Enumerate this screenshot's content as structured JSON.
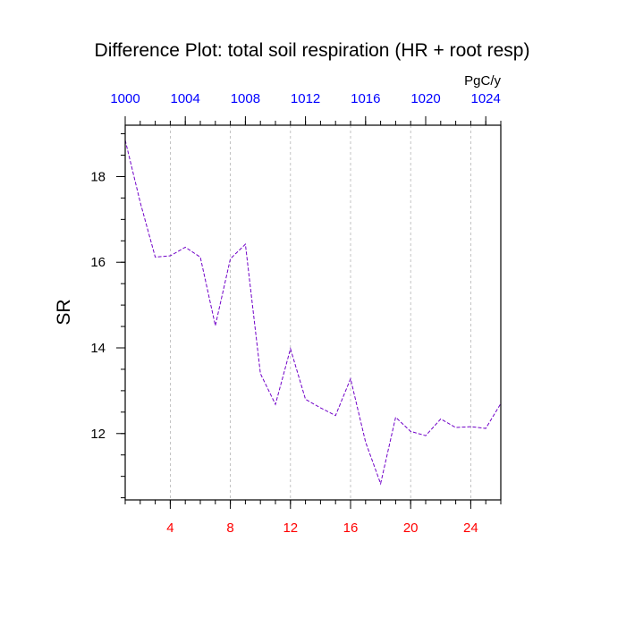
{
  "chart_data": {
    "type": "line",
    "title": "Difference Plot: total soil respiration (HR + root resp)",
    "units_label": "PgC/y",
    "ylabel": "SR",
    "xlabel": "",
    "xlim": [
      1,
      26
    ],
    "ylim": [
      10.45,
      19.2
    ],
    "grid": "vertical-dashed-at-major-x-ticks",
    "x_ticks_bottom": [
      4,
      8,
      12,
      16,
      20,
      24
    ],
    "x_ticks_top": [
      1000,
      1004,
      1008,
      1012,
      1016,
      1020,
      1024
    ],
    "y_ticks": [
      12,
      14,
      16,
      18
    ],
    "x": [
      1,
      2,
      3,
      4,
      5,
      6,
      7,
      8,
      9,
      10,
      11,
      12,
      13,
      14,
      15,
      16,
      17,
      18,
      19,
      20,
      21,
      22,
      23,
      24,
      25,
      26
    ],
    "series": [
      {
        "values": [
          18.85,
          17.4,
          16.12,
          16.15,
          16.35,
          16.12,
          14.52,
          16.08,
          16.42,
          13.4,
          12.68,
          13.98,
          12.8,
          12.6,
          12.42,
          13.28,
          11.8,
          10.83,
          12.38,
          12.05,
          11.95,
          12.34,
          12.14,
          12.16,
          12.12,
          12.7
        ],
        "color": "#7000c8",
        "style": "dashed"
      }
    ],
    "colors": {
      "bottom_tick_labels": "#ff0000",
      "top_tick_labels": "#0000ff",
      "grid": "#b4b4b4",
      "axes": "#000000"
    }
  }
}
